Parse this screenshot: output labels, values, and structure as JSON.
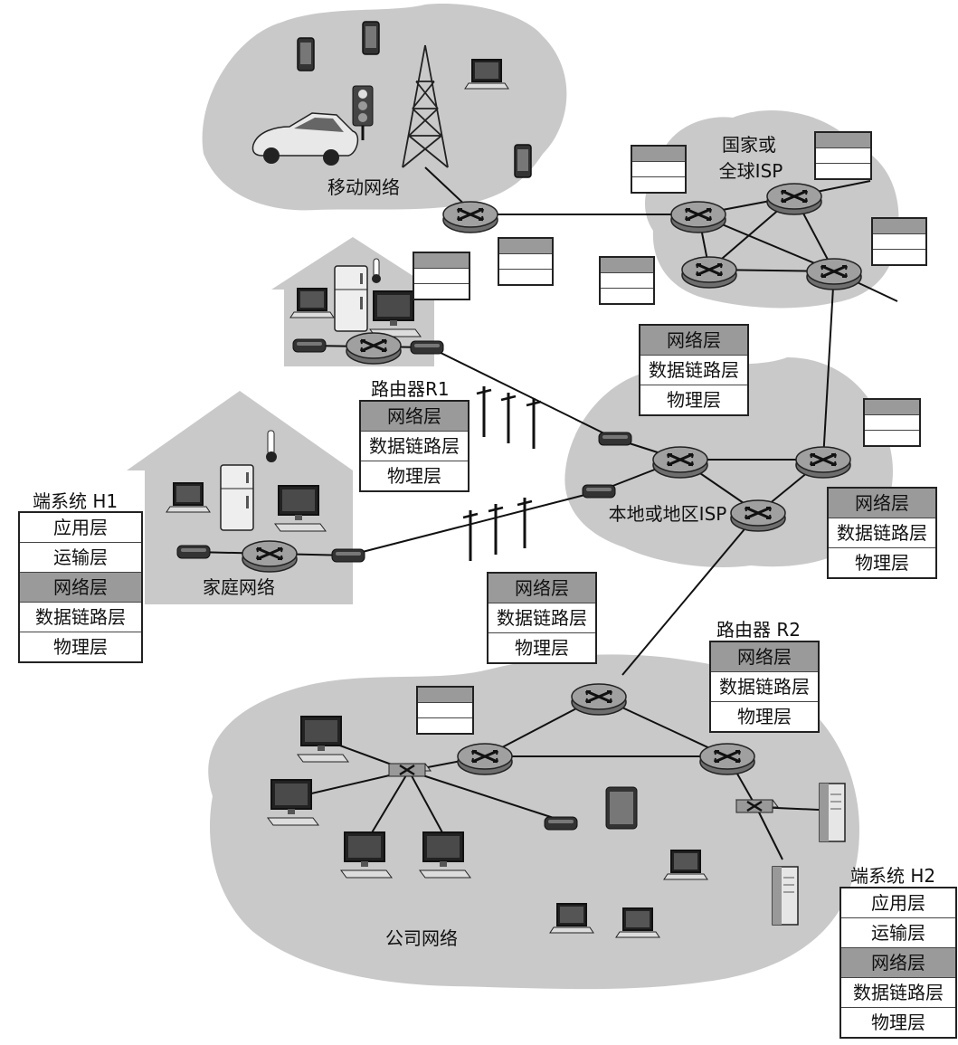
{
  "regions": {
    "mobile": "移动网络",
    "global_isp_line1": "国家或",
    "global_isp_line2": "全球ISP",
    "local_isp": "本地或地区ISP",
    "home": "家庭网络",
    "enterprise": "公司网络"
  },
  "nodes": {
    "router_r1": "路由器R1",
    "router_r2": "路由器 R2",
    "end_system_h1": "端系统 H1",
    "end_system_h2": "端系统 H2"
  },
  "layers": {
    "application": "应用层",
    "transport": "运输层",
    "network": "网络层",
    "link": "数据链路层",
    "physical": "物理层"
  },
  "colors": {
    "region_fill": "#c9c9c9",
    "router_fill": "#8e8e8e",
    "network_layer_fill": "#9a9a9a"
  }
}
